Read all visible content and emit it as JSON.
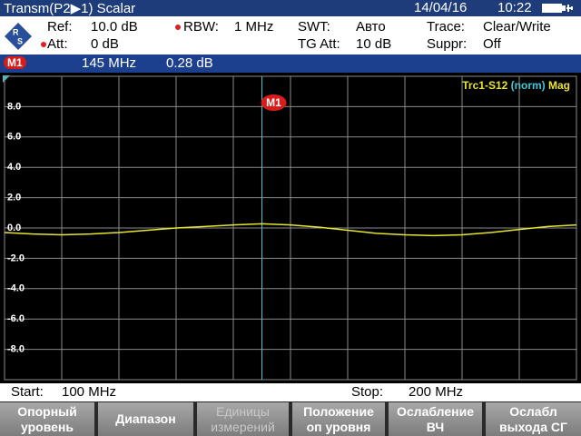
{
  "header": {
    "title": "Transm(P2▶1) Scalar",
    "date": "14/04/16",
    "time": "10:22"
  },
  "settings": {
    "ref_label": "Ref:",
    "ref": "10.0 dB",
    "att_label": "Att:",
    "att": "0 dB",
    "rbw_label": "RBW:",
    "rbw": "1 MHz",
    "swt_label": "SWT:",
    "swt": "Авто",
    "tg_att_label": "TG Att:",
    "tg_att": "10 dB",
    "trace_label": "Trace:",
    "trace": "Clear/Write",
    "suppr_label": "Suppr:",
    "suppr": "Off"
  },
  "marker": {
    "name": "M1",
    "freq": "145 MHz",
    "level": "0.28 dB"
  },
  "chart_data": {
    "type": "line",
    "trace_name": "Trc1-S12",
    "trace_mode": "(norm)",
    "trace_format": "Mag",
    "x": [
      100,
      105,
      110,
      115,
      120,
      125,
      130,
      135,
      140,
      145,
      150,
      155,
      160,
      165,
      170,
      175,
      180,
      185,
      190,
      195,
      200
    ],
    "series": [
      {
        "color": "#e6e632",
        "values": [
          -0.3,
          -0.4,
          -0.45,
          -0.4,
          -0.3,
          -0.15,
          0,
          0.1,
          0.2,
          0.28,
          0.2,
          0.05,
          -0.15,
          -0.35,
          -0.45,
          -0.5,
          -0.45,
          -0.3,
          -0.1,
          0.1,
          0.2
        ]
      }
    ],
    "xlim": [
      100,
      200
    ],
    "ylim": [
      -10,
      10
    ],
    "xticks": [
      110,
      120,
      130,
      140,
      150,
      160,
      170,
      180,
      190
    ],
    "yticks": [
      {
        "value": 8,
        "label": "8.0"
      },
      {
        "value": 6,
        "label": "6.0"
      },
      {
        "value": 4,
        "label": "4.0"
      },
      {
        "value": 2,
        "label": "2.0"
      },
      {
        "value": 0,
        "label": "0.0"
      },
      {
        "value": -2,
        "label": "-2.0"
      },
      {
        "value": -4,
        "label": "-4.0"
      },
      {
        "value": -6,
        "label": "-6.0"
      },
      {
        "value": -8,
        "label": "-8.0"
      }
    ],
    "grid": true,
    "marker_x": 145,
    "marker_color": "#40c8d8"
  },
  "start": {
    "label": "Start:",
    "value": "100 MHz"
  },
  "stop": {
    "label": "Stop:",
    "value": "200 MHz"
  },
  "softkeys": [
    [
      "Опорный",
      "уровень"
    ],
    [
      "Диапазон"
    ],
    [
      "Единицы",
      "измерений"
    ],
    [
      "Положение",
      "оп уровня"
    ],
    [
      "Ослабление",
      "ВЧ"
    ],
    [
      "Ослабл",
      "выхода СГ"
    ]
  ]
}
